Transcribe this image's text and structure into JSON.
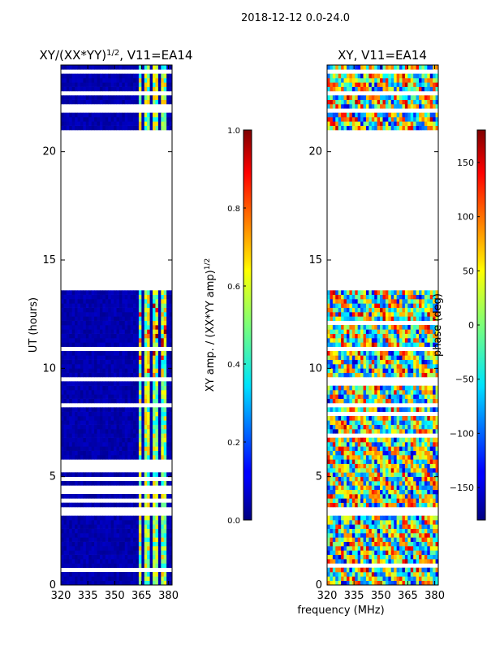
{
  "suptitle": "2018-12-12 0.0-24.0",
  "xlabel": "frequency (MHz)",
  "chart_data": [
    {
      "type": "heatmap",
      "title_text": "XY/(XX*YY)",
      "title_sup": "1/2",
      "title_suffix": ", V11=EA14",
      "ylabel": "UT (hours)",
      "xlim": [
        320,
        382
      ],
      "ylim": [
        0,
        24
      ],
      "xticks": [
        320,
        335,
        350,
        365,
        380
      ],
      "yticks": [
        0,
        5,
        10,
        15,
        20
      ],
      "empty_band_hours": [
        13.6,
        21.0
      ],
      "colormap": "jet",
      "colorbar": {
        "label_text": "XY amp. / (XX*YY amp)",
        "label_sup": "1/2",
        "range": [
          0.0,
          1.0
        ],
        "ticks": [
          "0.0",
          "0.2",
          "0.4",
          "0.6",
          "0.8",
          "1.0"
        ],
        "tick_values": [
          0.0,
          0.2,
          0.4,
          0.6,
          0.8,
          1.0
        ]
      }
    },
    {
      "type": "heatmap",
      "title_text": "XY, V11=EA14",
      "xlim": [
        320,
        382
      ],
      "ylim": [
        0,
        24
      ],
      "xticks": [
        320,
        335,
        350,
        365,
        380
      ],
      "yticks": [
        0,
        5,
        10,
        15,
        20
      ],
      "empty_band_hours": [
        13.6,
        21.0
      ],
      "colormap": "jet",
      "colorbar": {
        "label_text": "phase (deg)",
        "range": [
          -180,
          180
        ],
        "ticks": [
          "−150",
          "−100",
          "−50",
          "0",
          "50",
          "100",
          "150"
        ],
        "tick_values": [
          -150,
          -100,
          -50,
          0,
          50,
          100,
          150
        ]
      }
    }
  ]
}
